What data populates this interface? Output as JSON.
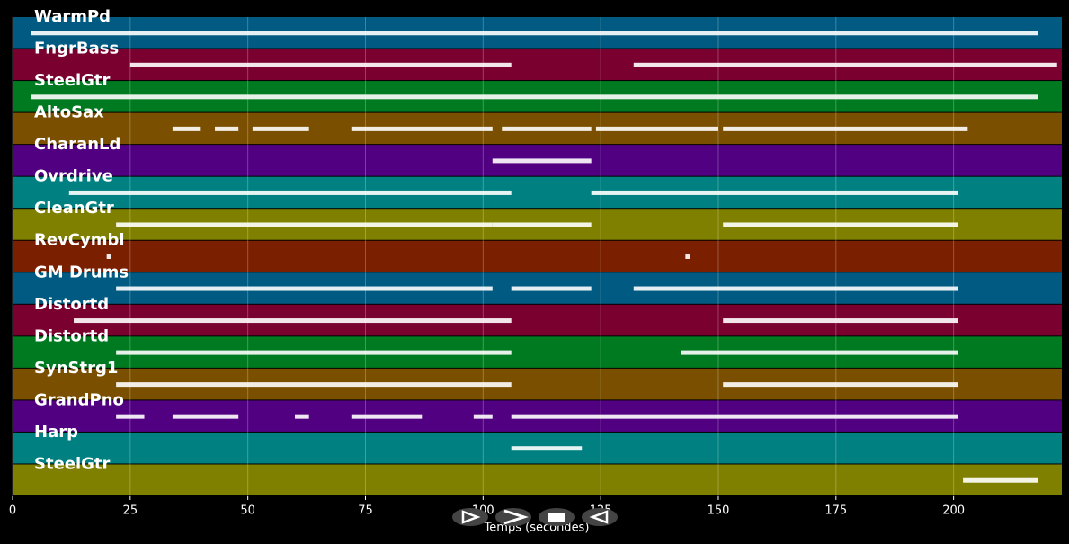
{
  "chart_data": {
    "type": "pianoroll",
    "xlabel": "Temps (secondes)",
    "xlim": [
      0,
      223
    ],
    "xticks": [
      0,
      25,
      50,
      75,
      100,
      125,
      150,
      175,
      200
    ],
    "grid": true,
    "series": [
      {
        "name": "WarmPd",
        "color": "#005a82",
        "notes": [
          [
            4,
            218
          ]
        ]
      },
      {
        "name": "FngrBass",
        "color": "#7a0030",
        "notes": [
          [
            25,
            106
          ],
          [
            132,
            222
          ]
        ]
      },
      {
        "name": "SteelGtr",
        "color": "#007a20",
        "notes": [
          [
            4,
            218
          ]
        ]
      },
      {
        "name": "AltoSax",
        "color": "#7a5000",
        "notes": [
          [
            34,
            40
          ],
          [
            43,
            48
          ],
          [
            51,
            63
          ],
          [
            72,
            102
          ],
          [
            104,
            123
          ],
          [
            124,
            150
          ],
          [
            151,
            203
          ]
        ]
      },
      {
        "name": "CharanLd",
        "color": "#500080",
        "notes": [
          [
            102,
            123
          ]
        ]
      },
      {
        "name": "Ovrdrive",
        "color": "#008080",
        "notes": [
          [
            12,
            106
          ],
          [
            123,
            201
          ]
        ]
      },
      {
        "name": "CleanGtr",
        "color": "#808000",
        "notes": [
          [
            22,
            102
          ],
          [
            102,
            123
          ],
          [
            151,
            201
          ]
        ]
      },
      {
        "name": "RevCymbl",
        "color": "#7a2000",
        "notes": [
          [
            20,
            21
          ],
          [
            143,
            144
          ]
        ]
      },
      {
        "name": "GM Drums",
        "color": "#005a82",
        "notes": [
          [
            22,
            102
          ],
          [
            106,
            123
          ],
          [
            132,
            201
          ]
        ]
      },
      {
        "name": "Distortd",
        "color": "#7a0030",
        "notes": [
          [
            13,
            106
          ],
          [
            151,
            201
          ]
        ]
      },
      {
        "name": "Distortd",
        "color": "#007a20",
        "notes": [
          [
            22,
            106
          ],
          [
            142,
            201
          ]
        ]
      },
      {
        "name": "SynStrg1",
        "color": "#7a5000",
        "notes": [
          [
            22,
            106
          ],
          [
            151,
            201
          ]
        ]
      },
      {
        "name": "GrandPno",
        "color": "#500080",
        "notes": [
          [
            22,
            28
          ],
          [
            34,
            48
          ],
          [
            60,
            63
          ],
          [
            72,
            87
          ],
          [
            98,
            102
          ],
          [
            106,
            201
          ]
        ]
      },
      {
        "name": "Harp",
        "color": "#008080",
        "notes": [
          [
            106,
            121
          ]
        ]
      },
      {
        "name": "SteelGtr",
        "color": "#808000",
        "notes": [
          [
            202,
            218
          ]
        ]
      }
    ]
  }
}
